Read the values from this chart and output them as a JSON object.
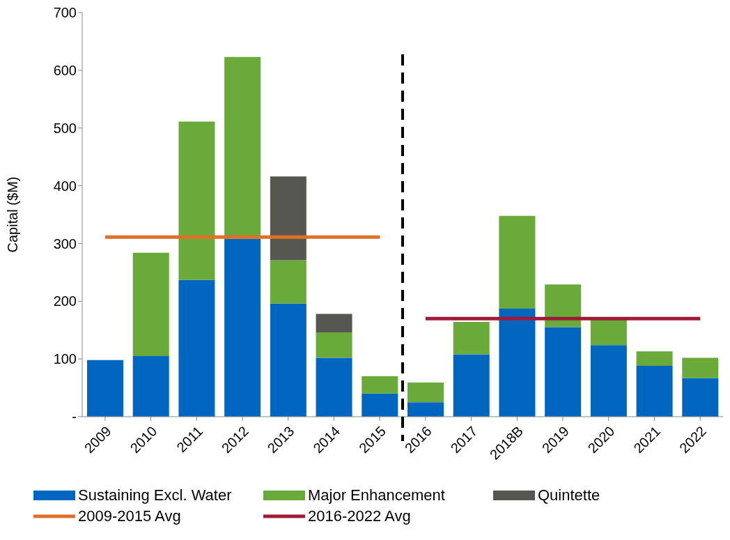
{
  "chart_data": {
    "type": "bar",
    "ylabel": "Capital ($M)",
    "stacked": true,
    "legend": "bottom",
    "grid": false,
    "categories": [
      "2009",
      "2010",
      "2011",
      "2012",
      "2013",
      "2014",
      "2015",
      "2016",
      "2017",
      "2018B",
      "2019",
      "2020",
      "2021",
      "2022"
    ],
    "ylim": [
      0,
      700
    ],
    "yticks": [
      {
        "value": 0,
        "label": "-"
      },
      100,
      200,
      300,
      400,
      500,
      600,
      700
    ],
    "series": [
      {
        "name": "Sustaining Excl. Water",
        "color": "#0066c0",
        "values": [
          98,
          105,
          237,
          308,
          196,
          102,
          40,
          25,
          108,
          187,
          155,
          124,
          88,
          67
        ]
      },
      {
        "name": "Major Enhancement",
        "color": "#6aaa3a",
        "values": [
          null,
          179,
          274,
          315,
          75,
          44,
          30,
          34,
          56,
          161,
          74,
          46,
          25,
          35
        ]
      },
      {
        "name": "Quintette",
        "color": "#575751",
        "values": [
          null,
          null,
          null,
          null,
          145,
          32,
          null,
          null,
          null,
          null,
          null,
          null,
          null,
          null
        ]
      },
      {
        "name": "2009-2015 Avg",
        "type": "line",
        "color": "#e07028",
        "values": [
          311,
          311,
          311,
          311,
          311,
          311,
          311,
          null,
          null,
          null,
          null,
          null,
          null,
          null
        ]
      },
      {
        "name": "2016-2022 Avg",
        "type": "line",
        "color": "#a01a38",
        "values": [
          null,
          null,
          null,
          null,
          null,
          null,
          null,
          170,
          170,
          170,
          170,
          170,
          170,
          170
        ]
      }
    ]
  }
}
